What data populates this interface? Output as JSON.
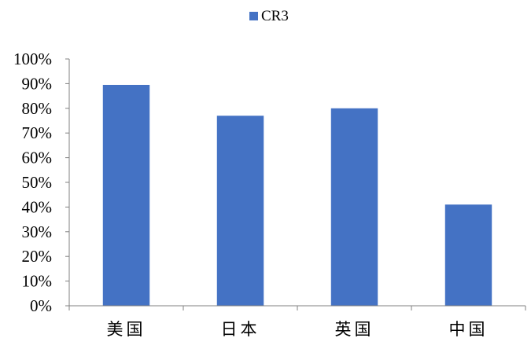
{
  "chart_data": {
    "type": "bar",
    "title": "",
    "xlabel": "",
    "ylabel": "",
    "categories": [
      "美国",
      "日本",
      "英国",
      "中国"
    ],
    "series": [
      {
        "name": "CR3",
        "values": [
          89.5,
          77,
          80,
          41
        ]
      }
    ],
    "ylim": [
      0,
      100
    ],
    "yticks": [
      0,
      10,
      20,
      30,
      40,
      50,
      60,
      70,
      80,
      90,
      100
    ],
    "ytick_labels": [
      "0%",
      "10%",
      "20%",
      "30%",
      "40%",
      "50%",
      "60%",
      "70%",
      "80%",
      "90%",
      "100%"
    ],
    "grid": false,
    "legend_position": "top-center",
    "colors": {
      "series": "#4472C4",
      "axis": "#808080"
    }
  }
}
